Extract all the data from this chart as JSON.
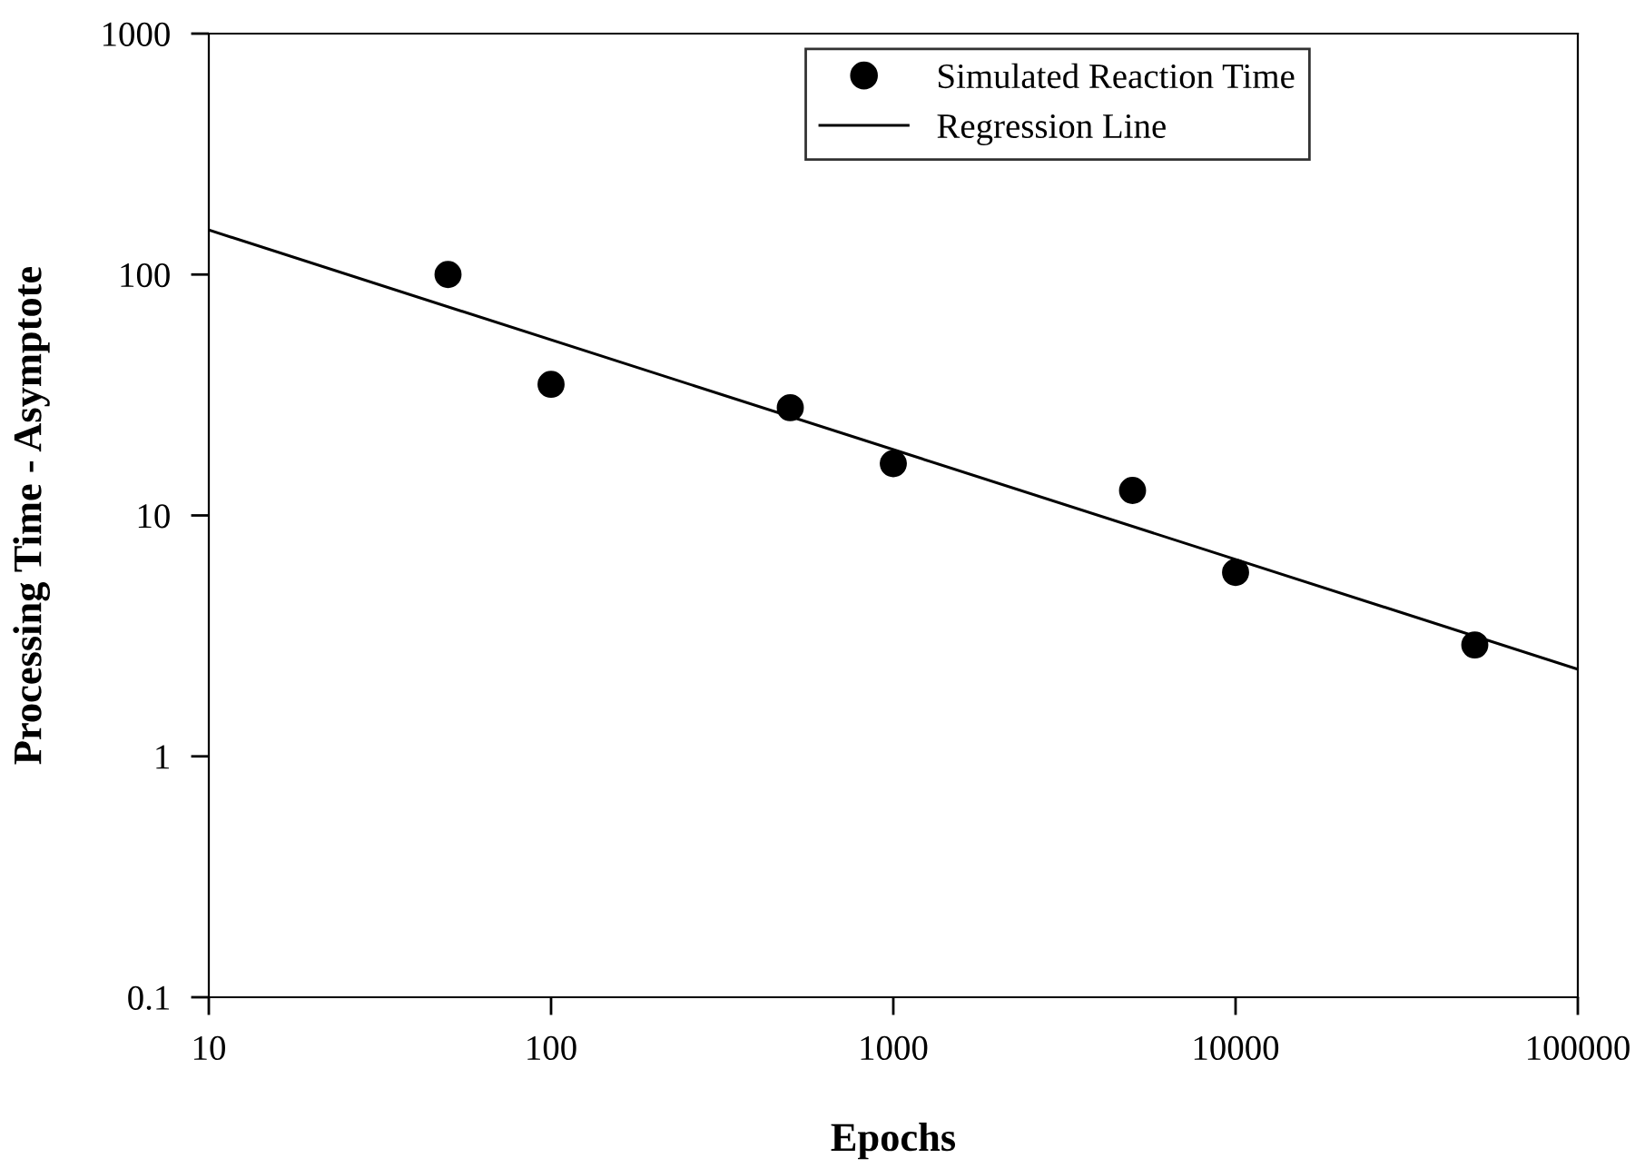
{
  "chart_data": {
    "type": "scatter",
    "xlabel": "Epochs",
    "ylabel": "Processing Time - Asymptote",
    "log": "xy",
    "xlim": [
      10,
      100000
    ],
    "ylim": [
      0.1,
      1000
    ],
    "xticks": [
      10,
      100,
      1000,
      10000,
      100000
    ],
    "yticks": [
      0.1,
      1,
      10,
      100,
      1000
    ],
    "grid": false,
    "legend": "top",
    "marker": "circle",
    "series": [
      {
        "name": "Simulated Reaction Time",
        "color": "#000000",
        "x": [
          50,
          100,
          500,
          1000,
          5000,
          10000,
          50000
        ],
        "values": [
          100,
          35,
          28,
          16.4,
          12.7,
          5.8,
          2.9
        ]
      },
      {
        "name": "Regression Line",
        "type": "line",
        "color": "#000000",
        "line_style": "solid",
        "marker": "none",
        "x": [
          10,
          100000
        ],
        "values": [
          153,
          2.3
        ]
      }
    ]
  }
}
